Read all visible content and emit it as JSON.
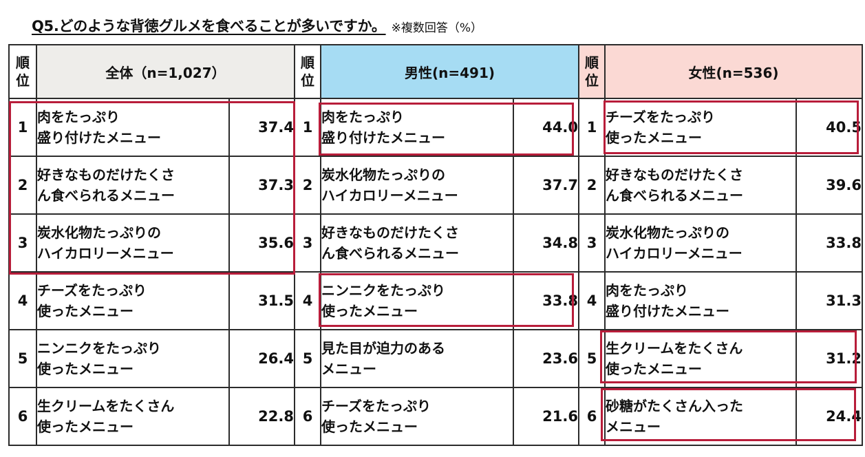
{
  "title": "Q5.どのような背徳グルメを食べることが多いですか。",
  "note": "※複数回答（%）",
  "rank_header": [
    "順",
    "位"
  ],
  "accent_color": "#b81d3a",
  "chart_data": {
    "type": "table",
    "groups": [
      {
        "header": "全体（n=1,027）",
        "rows": [
          {
            "rank": "1",
            "item": "肉をたっぷり\n盛り付けたメニュー",
            "value": "37.4"
          },
          {
            "rank": "2",
            "item": "好きなものだけたくさ\nん食べられるメニュー",
            "value": "37.3"
          },
          {
            "rank": "3",
            "item": "炭水化物たっぷりの\nハイカロリーメニュー",
            "value": "35.6"
          },
          {
            "rank": "4",
            "item": "チーズをたっぷり\n使ったメニュー",
            "value": "31.5"
          },
          {
            "rank": "5",
            "item": "ニンニクをたっぷり\n使ったメニュー",
            "value": "26.4"
          },
          {
            "rank": "6",
            "item": "生クリームをたくさん\n使ったメニュー",
            "value": "22.8"
          }
        ]
      },
      {
        "header": "男性(n=491)",
        "rows": [
          {
            "rank": "1",
            "item": "肉をたっぷり\n盛り付けたメニュー",
            "value": "44.0"
          },
          {
            "rank": "2",
            "item": "炭水化物たっぷりの\nハイカロリーメニュー",
            "value": "37.7"
          },
          {
            "rank": "3",
            "item": "好きなものだけたくさ\nん食べられるメニュー",
            "value": "34.8"
          },
          {
            "rank": "4",
            "item": "ニンニクをたっぷり\n使ったメニュー",
            "value": "33.8"
          },
          {
            "rank": "5",
            "item": "見た目が迫力のある\nメニュー",
            "value": "23.6"
          },
          {
            "rank": "6",
            "item": "チーズをたっぷり\n使ったメニュー",
            "value": "21.6"
          }
        ]
      },
      {
        "header": "女性(n=536)",
        "rows": [
          {
            "rank": "1",
            "item": "チーズをたっぷり\n使ったメニュー",
            "value": "40.5"
          },
          {
            "rank": "2",
            "item": "好きなものだけたくさ\nん食べられるメニュー",
            "value": "39.6"
          },
          {
            "rank": "3",
            "item": "炭水化物たっぷりの\nハイカロリーメニュー",
            "value": "33.8"
          },
          {
            "rank": "4",
            "item": "肉をたっぷり\n盛り付けたメニュー",
            "value": "31.3"
          },
          {
            "rank": "5",
            "item": "生クリームをたくさん\n使ったメニュー",
            "value": "31.2"
          },
          {
            "rank": "6",
            "item": "砂糖がたくさん入った\nメニュー",
            "value": "24.4"
          }
        ]
      }
    ]
  }
}
